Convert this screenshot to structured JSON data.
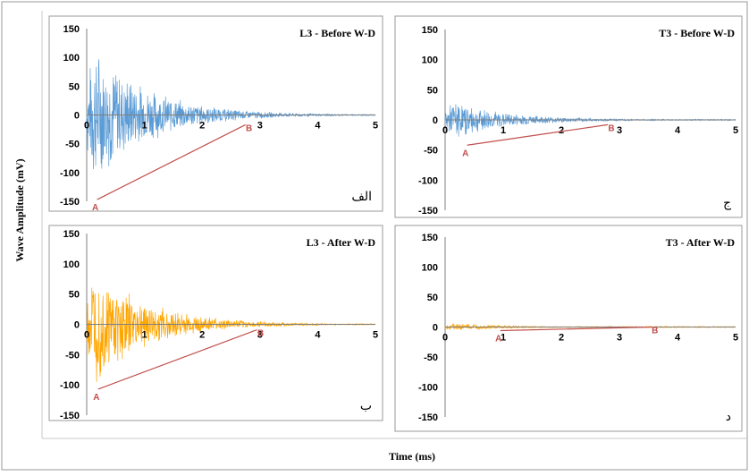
{
  "figure": {
    "ylabel": "Wave Amplitude (mV)",
    "xlabel": "Time (ms)"
  },
  "colors": {
    "before": "#5b9bd5",
    "after": "#ffa500",
    "line_ab": "#c0504d",
    "label_ab": "#c0504d",
    "axis": "#7f7f7f",
    "frame": "#9a9a9a"
  },
  "chart_data": [
    {
      "type": "line",
      "title": "L3 - Before W-D",
      "corner_label": "الف",
      "xlim": [
        0,
        5
      ],
      "ylim": [
        -150,
        150
      ],
      "xticks": [
        0,
        1,
        2,
        3,
        4,
        5
      ],
      "yticks": [
        150,
        100,
        50,
        0,
        -50,
        -100,
        -150
      ],
      "series": [
        {
          "color": "before",
          "peak_amplitude": 128,
          "decay_end_time": 5
        }
      ],
      "line_AB": {
        "A": {
          "label": "A",
          "x": 0.18,
          "y": -147
        },
        "B": {
          "label": "B",
          "x": 2.75,
          "y": -17
        }
      }
    },
    {
      "type": "line",
      "title": "T3 - Before W-D",
      "corner_label": "ج",
      "xlim": [
        0,
        5
      ],
      "ylim": [
        -150,
        150
      ],
      "xticks": [
        0,
        1,
        2,
        3,
        4,
        5
      ],
      "yticks": [
        150,
        100,
        50,
        0,
        -50,
        -100,
        -150
      ],
      "series": [
        {
          "color": "before",
          "peak_amplitude": 33,
          "decay_end_time": 5
        }
      ],
      "line_AB": {
        "A": {
          "label": "A",
          "x": 0.38,
          "y": -42
        },
        "B": {
          "label": "B",
          "x": 2.8,
          "y": -8
        }
      }
    },
    {
      "type": "line",
      "title": "L3 - After W-D",
      "corner_label": "ب",
      "xlim": [
        0,
        5
      ],
      "ylim": [
        -150,
        150
      ],
      "xticks": [
        0,
        1,
        2,
        3,
        4,
        5
      ],
      "yticks": [
        150,
        100,
        50,
        0,
        -50,
        -100,
        -150
      ],
      "series": [
        {
          "color": "after",
          "peak_amplitude": 100,
          "decay_end_time": 5
        }
      ],
      "line_AB": {
        "A": {
          "label": "A",
          "x": 0.2,
          "y": -107
        },
        "B": {
          "label": "B",
          "x": 2.95,
          "y": -9
        }
      }
    },
    {
      "type": "line",
      "title": "T3 - After W-D",
      "corner_label": "د",
      "xlim": [
        0,
        5
      ],
      "ylim": [
        -150,
        150
      ],
      "xticks": [
        0,
        1,
        2,
        3,
        4,
        5
      ],
      "yticks": [
        150,
        100,
        50,
        0,
        -50,
        -100,
        -150
      ],
      "series": [
        {
          "color": "after",
          "peak_amplitude": 7,
          "decay_end_time": 5
        }
      ],
      "line_AB": {
        "A": {
          "label": "A",
          "x": 0.95,
          "y": -6
        },
        "B": {
          "label": "B",
          "x": 3.55,
          "y": 0
        }
      }
    }
  ]
}
